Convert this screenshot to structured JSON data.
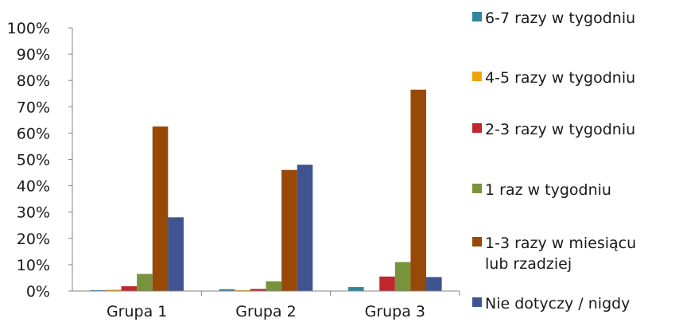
{
  "chart_data": {
    "type": "bar",
    "categories": [
      "Grupa 1",
      "Grupa 2",
      "Grupa 3"
    ],
    "ylim": [
      0,
      100
    ],
    "yticks": [
      "0%",
      "10%",
      "20%",
      "30%",
      "40%",
      "50%",
      "60%",
      "70%",
      "80%",
      "90%",
      "100%"
    ],
    "grid": false,
    "legend_position": "right",
    "series": [
      {
        "name": "6-7 razy w tygodniu",
        "color": "#31859c",
        "values": [
          0.3,
          0.7,
          1.5
        ]
      },
      {
        "name": "4-5 razy w tygodniu",
        "color": "#f0a30a",
        "values": [
          0.5,
          0.3,
          0.0
        ]
      },
      {
        "name": "2-3 razy w tygodniu",
        "color": "#c0282d",
        "values": [
          1.8,
          0.8,
          5.5
        ]
      },
      {
        "name": "1 raz w tygodniu",
        "color": "#77933c",
        "values": [
          6.5,
          3.7,
          11.0
        ]
      },
      {
        "name": "1-3 razy w miesiącu\nlub rzadziej",
        "color": "#984807",
        "values": [
          62.5,
          46.0,
          76.5
        ]
      },
      {
        "name": "Nie dotyczy / nigdy",
        "color": "#3f5490",
        "values": [
          28.0,
          48.0,
          5.3
        ]
      }
    ]
  }
}
